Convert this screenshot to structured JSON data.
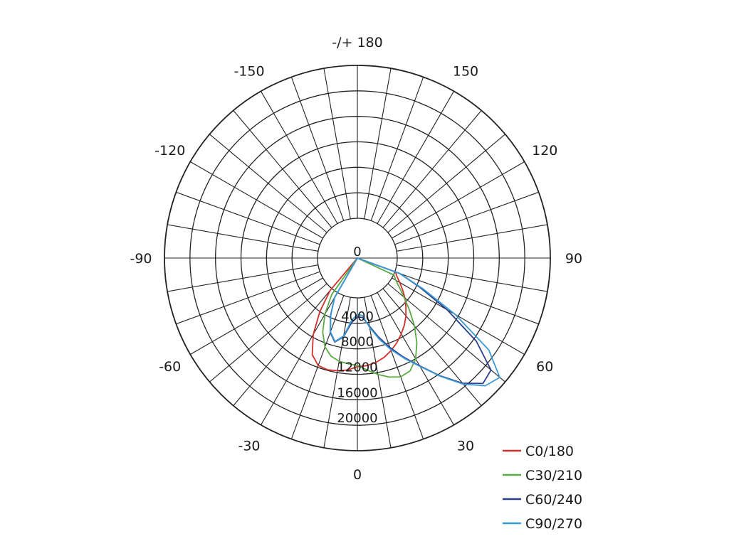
{
  "chart_data": {
    "type": "polar",
    "angle_labels": [
      {
        "deg": 180,
        "text": "-/+ 180"
      },
      {
        "deg": -150,
        "text": "-150"
      },
      {
        "deg": 150,
        "text": "150"
      },
      {
        "deg": -120,
        "text": "-120"
      },
      {
        "deg": 120,
        "text": "120"
      },
      {
        "deg": -90,
        "text": "-90"
      },
      {
        "deg": 90,
        "text": "90"
      },
      {
        "deg": -60,
        "text": "-60"
      },
      {
        "deg": 60,
        "text": "60"
      },
      {
        "deg": -30,
        "text": "-30"
      },
      {
        "deg": 30,
        "text": "30"
      },
      {
        "deg": 0,
        "text": "0"
      }
    ],
    "radial_axis": {
      "max": 24000,
      "rings": [
        4000,
        8000,
        12000,
        16000,
        20000,
        24000
      ],
      "tick_labels": [
        {
          "value": 0,
          "text": "0"
        },
        {
          "value": 4000,
          "text": "4000"
        },
        {
          "value": 8000,
          "text": "8000"
        },
        {
          "value": 12000,
          "text": "12000"
        },
        {
          "value": 16000,
          "text": "16000"
        },
        {
          "value": 20000,
          "text": "20000"
        }
      ]
    },
    "spoke_step_deg": 10,
    "angle_unit": "degrees",
    "value_unit": "cd/klm",
    "series": [
      {
        "name": "C0/180",
        "color": "#d2302c",
        "angles": [
          0,
          5,
          10,
          15,
          20,
          25,
          30,
          35,
          40,
          45,
          50,
          55,
          60,
          65,
          70,
          75,
          80,
          85,
          90,
          95,
          100,
          105,
          110,
          115,
          120,
          125,
          130,
          135,
          140,
          145,
          150,
          155,
          160,
          165,
          170,
          175,
          180,
          185,
          190,
          195,
          200,
          205,
          210,
          215,
          220,
          225,
          230,
          235,
          240,
          245,
          250,
          255,
          260,
          265,
          270,
          275,
          280,
          285,
          290,
          295,
          300,
          305,
          310,
          315,
          320,
          325,
          330,
          335,
          340,
          345,
          350,
          355
        ],
        "values": [
          10800,
          10700,
          10400,
          9900,
          9200,
          8400,
          7500,
          6600,
          5600,
          4500,
          3500,
          2400,
          1400,
          600,
          100,
          0,
          0,
          0,
          0,
          0,
          0,
          0,
          0,
          0,
          0,
          0,
          0,
          0,
          0,
          0,
          0,
          0,
          0,
          0,
          0,
          0,
          0,
          0,
          0,
          0,
          0,
          0,
          0,
          0,
          0,
          0,
          0,
          0,
          0,
          0,
          0,
          0,
          0,
          0,
          0,
          0,
          0,
          0,
          0,
          0,
          0,
          0,
          0,
          0,
          400,
          4000,
          7600,
          10500,
          11700,
          11900,
          11700,
          11400
        ]
      },
      {
        "name": "C30/210",
        "color": "#5aaa46",
        "angles": [
          0,
          5,
          10,
          15,
          20,
          25,
          30,
          35,
          40,
          45,
          50,
          55,
          60,
          65,
          70,
          75,
          80,
          85,
          90,
          95,
          100,
          105,
          110,
          115,
          120,
          125,
          130,
          135,
          140,
          145,
          150,
          155,
          160,
          165,
          170,
          175,
          180,
          185,
          190,
          195,
          200,
          205,
          210,
          215,
          220,
          225,
          230,
          235,
          240,
          245,
          250,
          255,
          260,
          265,
          270,
          275,
          280,
          285,
          290,
          295,
          300,
          305,
          310,
          315,
          320,
          325,
          330,
          335,
          340,
          345,
          350,
          355
        ],
        "values": [
          10600,
          11400,
          12300,
          13100,
          13600,
          13300,
          12000,
          10000,
          7700,
          5300,
          3300,
          1800,
          700,
          100,
          0,
          0,
          0,
          0,
          0,
          0,
          0,
          0,
          0,
          0,
          0,
          0,
          0,
          0,
          0,
          0,
          0,
          0,
          0,
          0,
          0,
          0,
          0,
          0,
          0,
          0,
          0,
          0,
          0,
          0,
          0,
          0,
          0,
          0,
          0,
          0,
          0,
          0,
          0,
          0,
          0,
          0,
          0,
          0,
          0,
          0,
          0,
          0,
          0,
          0,
          0,
          800,
          3900,
          6600,
          8600,
          9700,
          10200,
          10400
        ]
      },
      {
        "name": "C60/240",
        "color": "#2d3f8a",
        "angles": [
          0,
          5,
          10,
          15,
          20,
          25,
          30,
          35,
          40,
          45,
          50,
          55,
          60,
          65,
          70,
          75,
          80,
          85,
          90,
          95,
          100,
          105,
          110,
          115,
          120,
          125,
          130,
          135,
          140,
          145,
          150,
          155,
          160,
          165,
          170,
          175,
          180,
          185,
          190,
          195,
          200,
          205,
          210,
          215,
          220,
          225,
          230,
          235,
          240,
          245,
          250,
          255,
          260,
          265,
          270,
          275,
          280,
          285,
          290,
          295,
          300,
          305,
          310,
          315,
          320,
          325,
          330,
          335,
          340,
          345,
          350,
          355
        ],
        "values": [
          3000,
          3100,
          4600,
          6600,
          8700,
          10900,
          13300,
          16300,
          19400,
          21600,
          21100,
          16500,
          10000,
          4500,
          800,
          0,
          0,
          0,
          0,
          0,
          0,
          0,
          0,
          0,
          0,
          0,
          0,
          0,
          0,
          0,
          0,
          0,
          0,
          0,
          0,
          0,
          0,
          0,
          0,
          0,
          0,
          0,
          0,
          0,
          0,
          0,
          0,
          0,
          0,
          0,
          0,
          0,
          0,
          0,
          0,
          0,
          0,
          0,
          0,
          0,
          0,
          0,
          0,
          0,
          0,
          0,
          900,
          3700,
          6200,
          7400,
          6300,
          3900
        ]
      },
      {
        "name": "C90/270",
        "color": "#3a9ad6",
        "angles": [
          0,
          5,
          10,
          15,
          20,
          25,
          30,
          35,
          40,
          45,
          50,
          55,
          60,
          65,
          70,
          75,
          80,
          85,
          90,
          95,
          100,
          105,
          110,
          115,
          120,
          125,
          130,
          135,
          140,
          145,
          150,
          155,
          160,
          165,
          170,
          175,
          180,
          185,
          190,
          195,
          200,
          205,
          210,
          215,
          220,
          225,
          230,
          235,
          240,
          245,
          250,
          255,
          260,
          265,
          270,
          275,
          280,
          285,
          290,
          295,
          300,
          305,
          310,
          315,
          320,
          325,
          330,
          335,
          340,
          345,
          350,
          355
        ],
        "values": [
          2600,
          2800,
          4800,
          6900,
          9000,
          11100,
          13400,
          16400,
          19600,
          22100,
          22900,
          18900,
          11500,
          5000,
          800,
          0,
          0,
          0,
          0,
          0,
          0,
          0,
          0,
          0,
          0,
          0,
          0,
          0,
          0,
          0,
          0,
          0,
          0,
          0,
          0,
          0,
          0,
          0,
          0,
          0,
          0,
          0,
          0,
          0,
          0,
          0,
          0,
          0,
          0,
          0,
          0,
          0,
          0,
          0,
          0,
          0,
          0,
          0,
          0,
          0,
          0,
          0,
          0,
          0,
          0,
          0,
          900,
          3600,
          6100,
          7300,
          6200,
          3500
        ]
      }
    ],
    "legend": {
      "placement": "bottom-right",
      "items": [
        {
          "label": "C0/180",
          "color": "#d2302c"
        },
        {
          "label": "C30/210",
          "color": "#5aaa46"
        },
        {
          "label": "C60/240",
          "color": "#2d3f8a"
        },
        {
          "label": "C90/270",
          "color": "#3a9ad6"
        }
      ]
    }
  }
}
